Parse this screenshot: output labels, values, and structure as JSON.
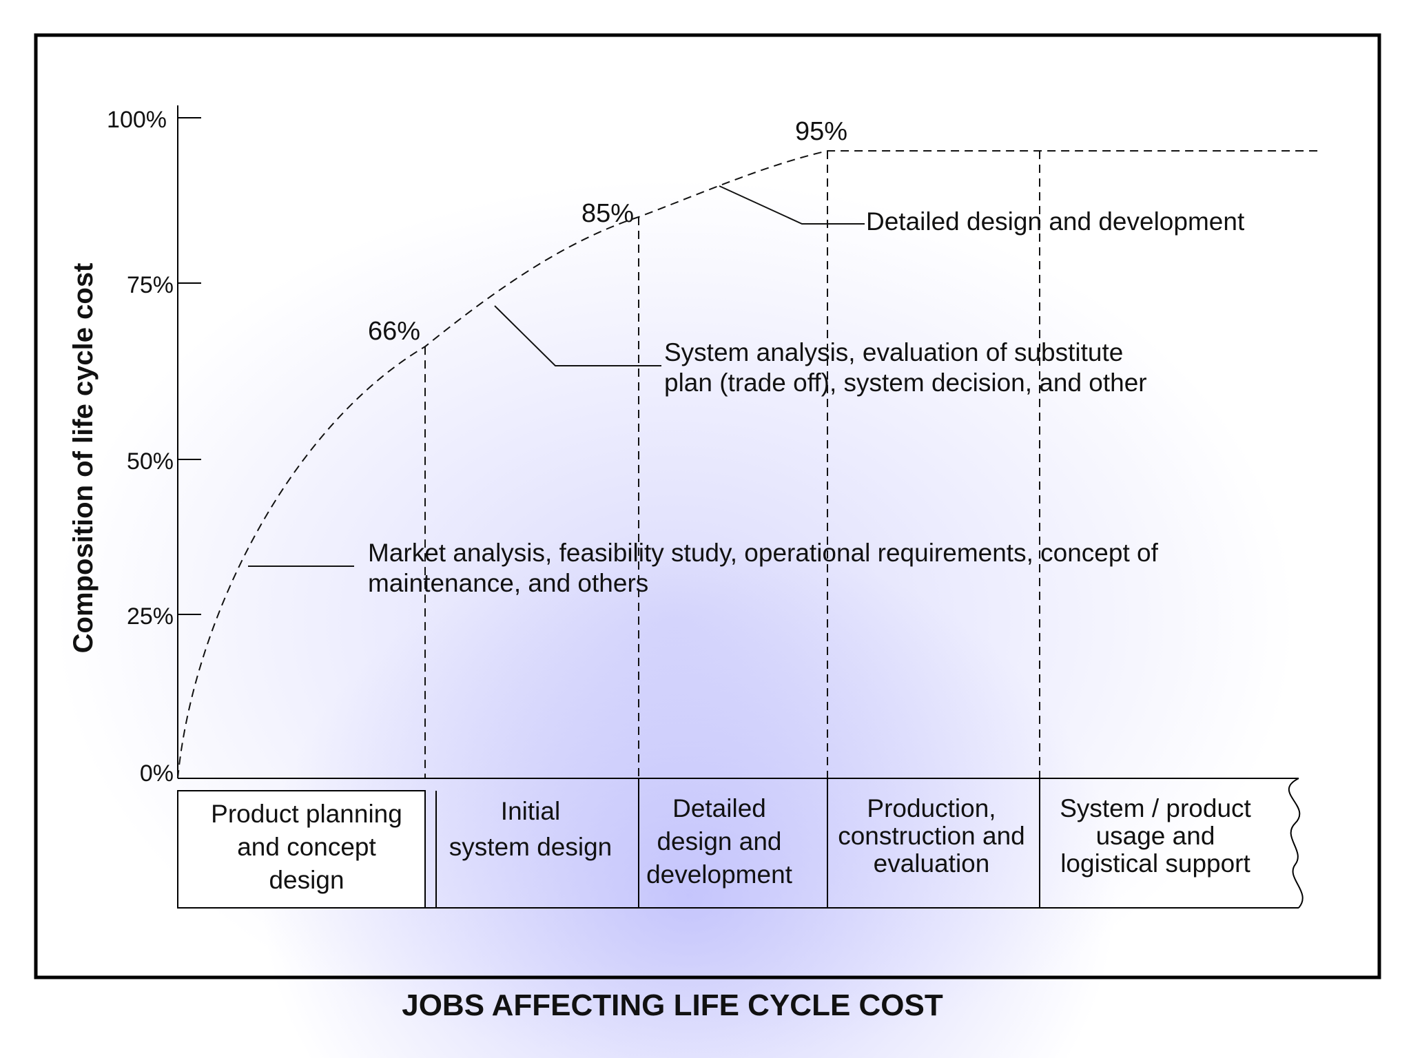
{
  "chart_data": {
    "type": "line",
    "title": "",
    "xlabel": "JOBS AFFECTING LIFE CYCLE COST",
    "ylabel": "Composition of life cycle cost",
    "y_ticks": [
      "100%",
      "75%",
      "50%",
      "25%",
      "0%"
    ],
    "ylim": [
      0,
      100
    ],
    "phases": [
      "Product planning and concept design",
      "Initial system design",
      "Detailed design and development",
      "Production, construction and evaluation",
      "System / product usage and logistical support"
    ],
    "phase_lines": [
      [
        "Product planning",
        "and concept",
        "design"
      ],
      [
        "Initial",
        "system design"
      ],
      [
        "Detailed",
        "design and",
        "development"
      ],
      [
        "Production,",
        "construction and",
        "evaluation"
      ],
      [
        "System / product",
        "usage and",
        "logistical support"
      ]
    ],
    "series": [
      {
        "values": [
          0,
          66,
          85,
          95,
          95
        ],
        "point_labels": [
          "",
          "66%",
          "85%",
          "95%",
          ""
        ]
      }
    ],
    "annotations": [
      [
        "Market analysis, feasibility study, operational requirements, concept of",
        "maintenance, and others"
      ],
      [
        "System analysis, evaluation of substitute",
        "plan (trade off), system decision, and other"
      ],
      [
        "Detailed design and development"
      ]
    ],
    "grid": false,
    "legend": "none"
  }
}
